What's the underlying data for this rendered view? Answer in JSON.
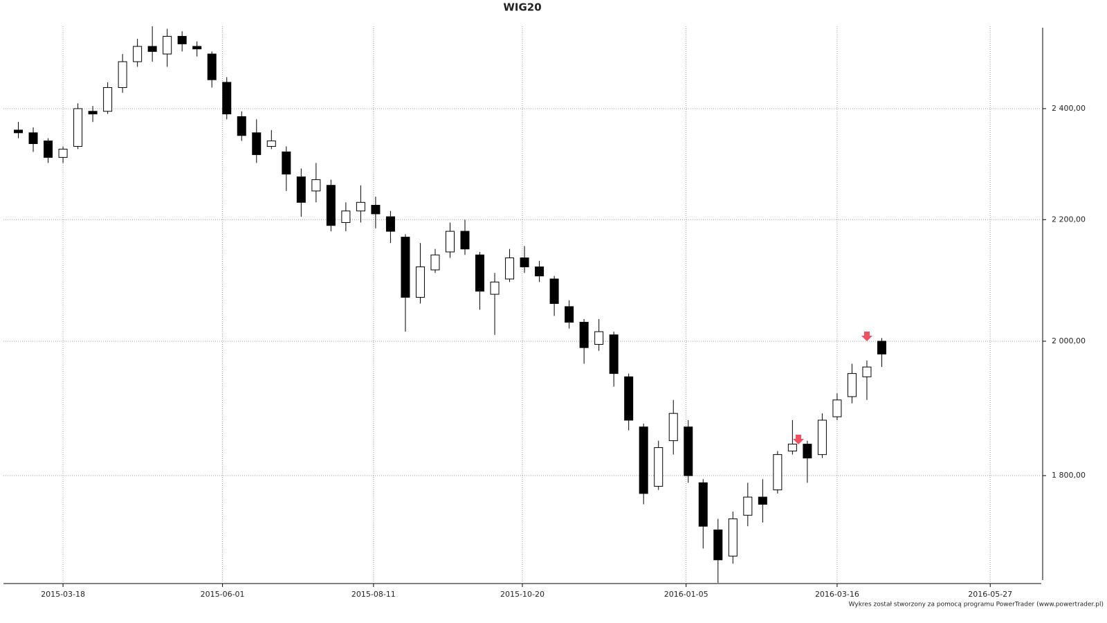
{
  "chart_data": {
    "type": "candlestick",
    "title": "WIG20",
    "footer": "Wykres został stworzony za pomocą programu PowerTrader (www.powertrader.pl)",
    "x": [
      "2015-02-25",
      "2015-03-04",
      "2015-03-11",
      "2015-03-18",
      "2015-03-25",
      "2015-04-01",
      "2015-04-08",
      "2015-04-15",
      "2015-04-22",
      "2015-04-29",
      "2015-05-06",
      "2015-05-13",
      "2015-05-20",
      "2015-05-27",
      "2015-06-03",
      "2015-06-10",
      "2015-06-17",
      "2015-06-24",
      "2015-07-01",
      "2015-07-08",
      "2015-07-15",
      "2015-07-22",
      "2015-07-29",
      "2015-08-05",
      "2015-08-12",
      "2015-08-19",
      "2015-08-26",
      "2015-09-02",
      "2015-09-09",
      "2015-09-16",
      "2015-09-23",
      "2015-09-30",
      "2015-10-07",
      "2015-10-14",
      "2015-10-21",
      "2015-10-28",
      "2015-11-04",
      "2015-11-11",
      "2015-11-18",
      "2015-11-25",
      "2015-12-02",
      "2015-12-09",
      "2015-12-16",
      "2015-12-23",
      "2015-12-30",
      "2016-01-06",
      "2016-01-13",
      "2016-01-20",
      "2016-01-27",
      "2016-02-03",
      "2016-02-10",
      "2016-02-17",
      "2016-02-24",
      "2016-03-02",
      "2016-03-09",
      "2016-03-16",
      "2016-03-23",
      "2016-03-30",
      "2016-04-06"
    ],
    "open": [
      2360,
      2355,
      2340,
      2310,
      2330,
      2395,
      2395,
      2440,
      2490,
      2520,
      2505,
      2540,
      2520,
      2505,
      2450,
      2385,
      2355,
      2330,
      2320,
      2275,
      2250,
      2260,
      2195,
      2215,
      2225,
      2205,
      2170,
      2070,
      2115,
      2145,
      2180,
      2140,
      2075,
      2100,
      2135,
      2120,
      2100,
      2055,
      2030,
      1995,
      2010,
      1945,
      1870,
      1785,
      1850,
      1870,
      1790,
      1725,
      1690,
      1745,
      1770,
      1780,
      1835,
      1845,
      1830,
      1885,
      1915,
      1945,
      2000
    ],
    "high": [
      2375,
      2365,
      2345,
      2330,
      2410,
      2405,
      2450,
      2505,
      2535,
      2560,
      2555,
      2550,
      2530,
      2510,
      2460,
      2395,
      2380,
      2360,
      2330,
      2290,
      2300,
      2270,
      2230,
      2260,
      2240,
      2215,
      2175,
      2160,
      2150,
      2195,
      2200,
      2145,
      2110,
      2150,
      2155,
      2130,
      2105,
      2065,
      2035,
      2035,
      2015,
      1950,
      1875,
      1850,
      1910,
      1880,
      1795,
      1740,
      1750,
      1790,
      1795,
      1835,
      1880,
      1850,
      1890,
      1920,
      1965,
      1970,
      2005
    ],
    "low": [
      2345,
      2320,
      2300,
      2300,
      2325,
      2375,
      2390,
      2430,
      2480,
      2490,
      2480,
      2510,
      2500,
      2440,
      2380,
      2340,
      2300,
      2325,
      2250,
      2205,
      2230,
      2180,
      2180,
      2195,
      2185,
      2160,
      2015,
      2060,
      2110,
      2135,
      2140,
      2050,
      2010,
      2095,
      2110,
      2095,
      2040,
      2020,
      1965,
      1985,
      1930,
      1865,
      1760,
      1780,
      1830,
      1790,
      1700,
      1655,
      1680,
      1730,
      1735,
      1775,
      1830,
      1790,
      1825,
      1880,
      1905,
      1910,
      1960
    ],
    "close": [
      2355,
      2335,
      2310,
      2325,
      2400,
      2390,
      2440,
      2490,
      2520,
      2510,
      2540,
      2525,
      2515,
      2455,
      2390,
      2350,
      2315,
      2340,
      2280,
      2230,
      2270,
      2190,
      2215,
      2230,
      2210,
      2180,
      2070,
      2120,
      2140,
      2180,
      2150,
      2080,
      2095,
      2135,
      2120,
      2105,
      2060,
      2030,
      1990,
      2015,
      1950,
      1880,
      1775,
      1840,
      1890,
      1800,
      1730,
      1685,
      1740,
      1770,
      1760,
      1830,
      1845,
      1825,
      1880,
      1910,
      1950,
      1960,
      1980
    ],
    "color": "#000000",
    "xlim": [
      "2015-02-18",
      "2016-06-20"
    ],
    "xticks": [
      "2015-03-18",
      "2015-06-01",
      "2015-08-11",
      "2015-10-20",
      "2016-01-05",
      "2016-03-16",
      "2016-05-27"
    ],
    "ylim": [
      1654,
      2560
    ],
    "log": true,
    "grid": true,
    "yticks": [
      {
        "value": 1800,
        "label": "1 800,00"
      },
      {
        "value": 2000,
        "label": "2 000,00"
      },
      {
        "value": 2200,
        "label": "2 200,00"
      },
      {
        "value": 2400,
        "label": "2 400,00"
      }
    ]
  }
}
